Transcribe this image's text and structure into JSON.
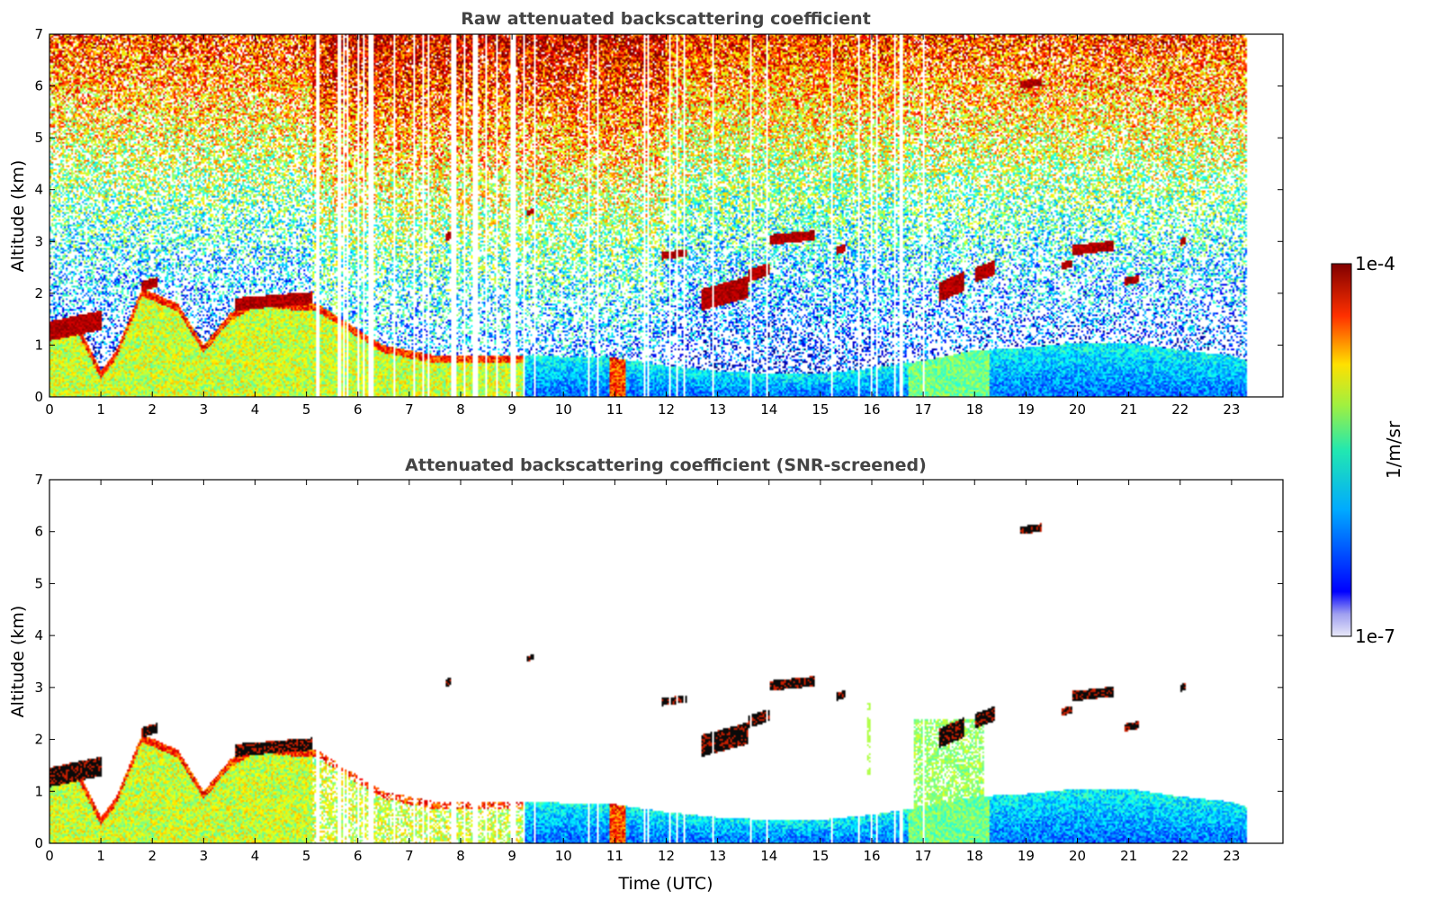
{
  "chart_data": [
    {
      "type": "heatmap",
      "title": "Raw attenuated backscattering coefficient",
      "xlabel": "",
      "ylabel": "Altitude (km)",
      "xlim": [
        0,
        24
      ],
      "ylim": [
        0,
        7
      ],
      "x_ticks": [
        0,
        1,
        2,
        3,
        4,
        5,
        6,
        7,
        8,
        9,
        10,
        11,
        12,
        13,
        14,
        15,
        16,
        17,
        18,
        19,
        20,
        21,
        22,
        23
      ],
      "y_ticks": [
        0,
        1,
        2,
        3,
        4,
        5,
        6,
        7
      ],
      "data_end_time": 23.3,
      "screened": false
    },
    {
      "type": "heatmap",
      "title": "Attenuated backscattering coefficient (SNR-screened)",
      "xlabel": "Time (UTC)",
      "ylabel": "Altitude (km)",
      "xlim": [
        0,
        24
      ],
      "ylim": [
        0,
        7
      ],
      "x_ticks": [
        0,
        1,
        2,
        3,
        4,
        5,
        6,
        7,
        8,
        9,
        10,
        11,
        12,
        13,
        14,
        15,
        16,
        17,
        18,
        19,
        20,
        21,
        22,
        23
      ],
      "y_ticks": [
        0,
        1,
        2,
        3,
        4,
        5,
        6,
        7
      ],
      "data_end_time": 23.3,
      "screened": true
    }
  ],
  "colorbar": {
    "label": "1/m/sr",
    "max_label": "1e-4",
    "min_label": "1e-7",
    "colormap": "jet",
    "log_min": -7,
    "log_max": -4
  },
  "features": {
    "boundary_layer_top_km": [
      [
        0,
        1.3
      ],
      [
        0.5,
        1.5
      ],
      [
        1.0,
        0.5
      ],
      [
        1.3,
        0.9
      ],
      [
        1.8,
        2.1
      ],
      [
        2.5,
        1.8
      ],
      [
        3.0,
        1.0
      ],
      [
        3.5,
        1.6
      ],
      [
        4.0,
        1.9
      ],
      [
        5.0,
        1.8
      ],
      [
        5.2,
        1.8
      ],
      [
        6.5,
        1.0
      ],
      [
        7.5,
        0.8
      ],
      [
        9.2,
        0.8
      ],
      [
        11,
        0.75
      ],
      [
        12,
        0.6
      ],
      [
        13,
        0.5
      ],
      [
        14,
        0.45
      ],
      [
        15,
        0.45
      ],
      [
        16,
        0.55
      ],
      [
        17,
        0.7
      ],
      [
        18,
        0.9
      ],
      [
        19,
        0.95
      ],
      [
        20,
        1.05
      ],
      [
        21,
        1.05
      ],
      [
        22,
        0.9
      ],
      [
        23,
        0.8
      ],
      [
        23.3,
        0.7
      ]
    ],
    "cloud_layers": [
      {
        "t0": 0.0,
        "t1": 1.0,
        "z0": 1.2,
        "z1": 1.55
      },
      {
        "t0": 1.8,
        "t1": 2.1,
        "z0": 2.1,
        "z1": 2.25
      },
      {
        "t0": 3.6,
        "t1": 5.1,
        "z0": 1.75,
        "z1": 1.95
      },
      {
        "t0": 7.7,
        "t1": 7.8,
        "z0": 3.05,
        "z1": 3.15
      },
      {
        "t0": 9.3,
        "t1": 9.45,
        "z0": 3.55,
        "z1": 3.6
      },
      {
        "t0": 11.9,
        "t1": 12.4,
        "z0": 2.7,
        "z1": 2.8
      },
      {
        "t0": 12.7,
        "t1": 13.6,
        "z0": 1.8,
        "z1": 2.2
      },
      {
        "t0": 13.6,
        "t1": 14.0,
        "z0": 2.3,
        "z1": 2.5
      },
      {
        "t0": 14.0,
        "t1": 14.9,
        "z0": 3.0,
        "z1": 3.15
      },
      {
        "t0": 15.3,
        "t1": 15.5,
        "z0": 2.8,
        "z1": 2.9
      },
      {
        "t0": 17.3,
        "t1": 17.8,
        "z0": 1.95,
        "z1": 2.3
      },
      {
        "t0": 18.0,
        "t1": 18.4,
        "z0": 2.3,
        "z1": 2.55
      },
      {
        "t0": 19.7,
        "t1": 19.9,
        "z0": 2.5,
        "z1": 2.6
      },
      {
        "t0": 19.9,
        "t1": 20.7,
        "z0": 2.8,
        "z1": 2.95
      },
      {
        "t0": 20.9,
        "t1": 21.2,
        "z0": 2.2,
        "z1": 2.3
      },
      {
        "t0": 22.0,
        "t1": 22.1,
        "z0": 2.95,
        "z1": 3.05
      },
      {
        "t0": 18.9,
        "t1": 19.3,
        "z0": 6.0,
        "z1": 6.1
      }
    ]
  }
}
